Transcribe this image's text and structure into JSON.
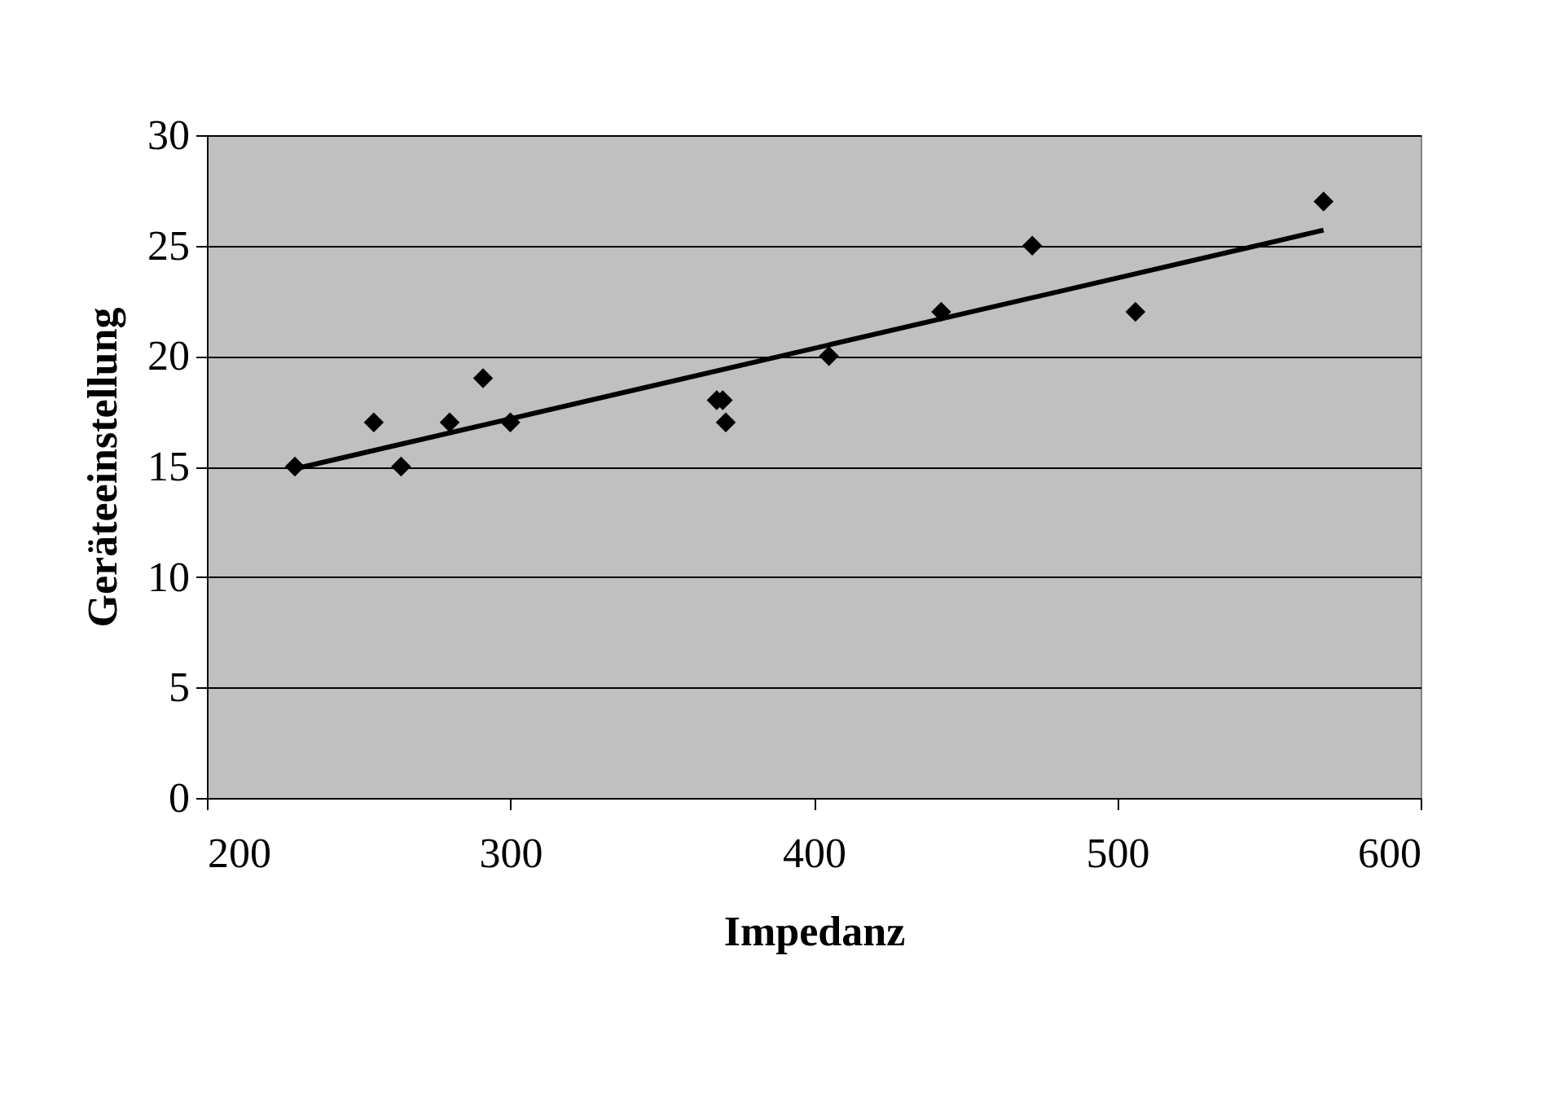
{
  "chart_data": {
    "type": "scatter",
    "xlabel": "Impedanz",
    "ylabel": "Geräteeinstellung",
    "xlim": [
      200,
      600
    ],
    "xticks": [
      200,
      300,
      400,
      500,
      600
    ],
    "ylim": [
      0,
      30
    ],
    "yticks": [
      0,
      5,
      10,
      15,
      20,
      25,
      30
    ],
    "grid": "y",
    "marker": "diamond",
    "series": [
      {
        "color": "#000000",
        "x": [
          229,
          255,
          264,
          280,
          291,
          300,
          368,
          370,
          371,
          405,
          442,
          472,
          506,
          568
        ],
        "values": [
          15,
          17,
          15,
          17,
          19,
          17,
          18,
          18,
          17,
          20,
          22,
          25,
          22,
          27
        ]
      },
      {
        "type": "line",
        "color": "#000000",
        "marker": "none",
        "line_style": "solid",
        "x": [
          229,
          568
        ],
        "values": [
          14.9,
          25.7
        ]
      }
    ]
  }
}
